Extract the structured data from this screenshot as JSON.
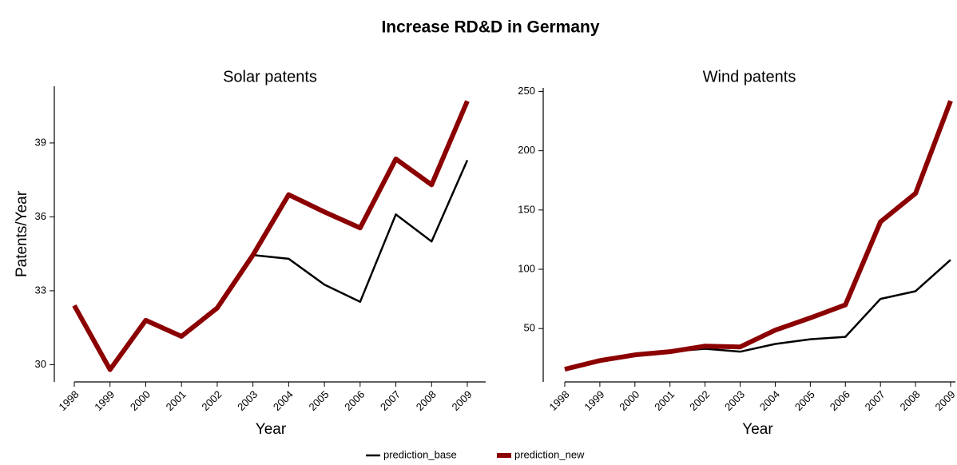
{
  "title": "Increase RD&D in Germany",
  "chart_data": [
    {
      "type": "line",
      "title": "Solar patents",
      "y_label": "Patents/Year",
      "x_label": "Year",
      "categories": [
        "1998",
        "1999",
        "2000",
        "2001",
        "2002",
        "2003",
        "2004",
        "2005",
        "2006",
        "2007",
        "2008",
        "2009"
      ],
      "ylim": [
        29.3,
        41.3
      ],
      "yticks": [
        30,
        33,
        36,
        39
      ],
      "series": [
        {
          "name": "prediction_base",
          "color": "#000000",
          "values": [
            32.4,
            29.8,
            31.8,
            31.15,
            32.3,
            34.45,
            34.3,
            33.25,
            32.55,
            36.1,
            35.0,
            38.3
          ]
        },
        {
          "name": "prediction_new",
          "color": "#8b0000",
          "values": [
            32.4,
            29.8,
            31.8,
            31.15,
            32.3,
            34.45,
            36.9,
            36.2,
            35.55,
            38.35,
            37.3,
            40.7
          ]
        }
      ]
    },
    {
      "type": "line",
      "title": "Wind patents",
      "x_label": "Year",
      "categories": [
        "1998",
        "1999",
        "2000",
        "2001",
        "2002",
        "2003",
        "2004",
        "2005",
        "2006",
        "2007",
        "2008",
        "2009"
      ],
      "ylim": [
        5,
        253
      ],
      "yticks": [
        50,
        100,
        150,
        200,
        250
      ],
      "series": [
        {
          "name": "prediction_base",
          "color": "#000000",
          "values": [
            15.7,
            23,
            27.8,
            30.5,
            33,
            30.5,
            37,
            41,
            43,
            75,
            81.5,
            108
          ]
        },
        {
          "name": "prediction_new",
          "color": "#8b0000",
          "values": [
            15.7,
            23,
            27.8,
            30.5,
            35.2,
            34.5,
            48.7,
            59,
            70,
            140,
            164,
            242
          ]
        }
      ]
    }
  ]
}
